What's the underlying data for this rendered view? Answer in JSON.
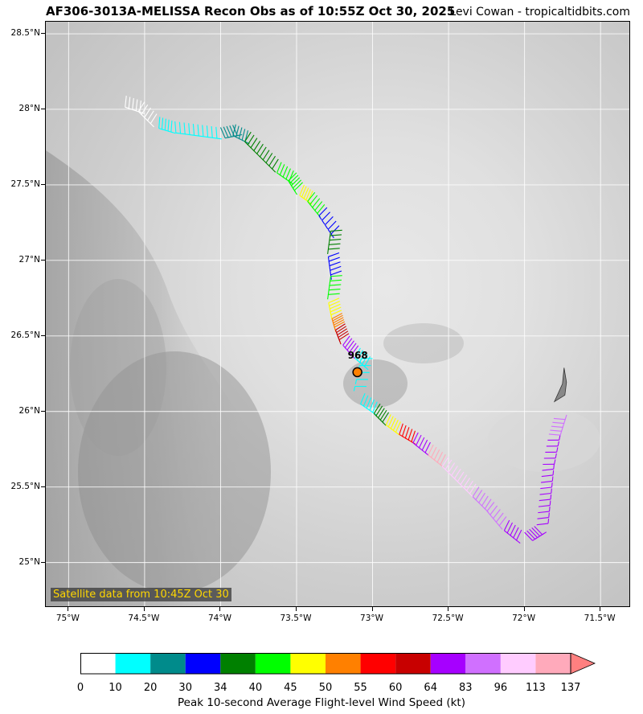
{
  "title": "AF306-3013A-MELISSA Recon Obs as of 10:55Z Oct 30, 2025",
  "credit": "Levi Cowan - tropicaltidbits.com",
  "satellite_label": "Satellite data from 10:45Z Oct 30",
  "center": {
    "pressure_label": "968",
    "lon": -73.1,
    "lat": 26.26
  },
  "axes": {
    "y_ticks": [
      "28.5°N",
      "28°N",
      "27.5°N",
      "27°N",
      "26.5°N",
      "26°N",
      "25.5°N",
      "25°N"
    ],
    "y_values": [
      28.5,
      28,
      27.5,
      27,
      26.5,
      26,
      25.5,
      25
    ],
    "x_ticks": [
      "75°W",
      "74.5°W",
      "74°W",
      "73.5°W",
      "73°W",
      "72.5°W",
      "72°W",
      "71.5°W"
    ],
    "x_values": [
      -75,
      -74.5,
      -74,
      -73.5,
      -73,
      -72.5,
      -72,
      -71.5
    ],
    "lon_range": [
      -75.15,
      -71.3
    ],
    "lat_range": [
      24.7,
      28.58
    ]
  },
  "colorbar": {
    "title": "Peak 10-second Average Flight-level Wind Speed (kt)",
    "labels": [
      "0",
      "10",
      "20",
      "30",
      "34",
      "40",
      "45",
      "50",
      "55",
      "60",
      "64",
      "83",
      "96",
      "113",
      "137"
    ],
    "colors": [
      "#ffffff",
      "#00ffff",
      "#008b8b",
      "#0000ff",
      "#008000",
      "#00ff00",
      "#ffff00",
      "#ff8000",
      "#ff0000",
      "#c80000",
      "#a600ff",
      "#d070ff",
      "#ffccff",
      "#ffaabb"
    ],
    "extend_color": "#ff8080"
  },
  "flight_track": [
    {
      "lon": -74.62,
      "lat": 28.09,
      "c": "#ffffff"
    },
    {
      "lon": -74.5,
      "lat": 28.05,
      "c": "#ffffff"
    },
    {
      "lon": -74.4,
      "lat": 27.95,
      "c": "#00ffff"
    },
    {
      "lon": -74.3,
      "lat": 27.92,
      "c": "#00ffff"
    },
    {
      "lon": -74.15,
      "lat": 27.9,
      "c": "#00ffff"
    },
    {
      "lon": -74.0,
      "lat": 27.88,
      "c": "#008b8b"
    },
    {
      "lon": -73.9,
      "lat": 27.9,
      "c": "#008b8b"
    },
    {
      "lon": -73.8,
      "lat": 27.85,
      "c": "#008000"
    },
    {
      "lon": -73.7,
      "lat": 27.75,
      "c": "#008000"
    },
    {
      "lon": -73.6,
      "lat": 27.65,
      "c": "#00ff00"
    },
    {
      "lon": -73.5,
      "lat": 27.58,
      "c": "#00ff00"
    },
    {
      "lon": -73.45,
      "lat": 27.5,
      "c": "#ffff00"
    },
    {
      "lon": -73.38,
      "lat": 27.45,
      "c": "#00ff00"
    },
    {
      "lon": -73.3,
      "lat": 27.35,
      "c": "#0000ff"
    },
    {
      "lon": -73.2,
      "lat": 27.2,
      "c": "#008000"
    },
    {
      "lon": -73.22,
      "lat": 27.05,
      "c": "#0000ff"
    },
    {
      "lon": -73.2,
      "lat": 26.9,
      "c": "#00ff00"
    },
    {
      "lon": -73.22,
      "lat": 26.75,
      "c": "#ffff00"
    },
    {
      "lon": -73.2,
      "lat": 26.65,
      "c": "#ff8000"
    },
    {
      "lon": -73.18,
      "lat": 26.58,
      "c": "#c80000"
    },
    {
      "lon": -73.15,
      "lat": 26.5,
      "c": "#a600ff"
    },
    {
      "lon": -73.08,
      "lat": 26.42,
      "c": "#00ffff"
    },
    {
      "lon": -73.0,
      "lat": 26.35,
      "c": "#00ffff"
    },
    {
      "lon": -73.05,
      "lat": 26.12,
      "c": "#00ffff"
    },
    {
      "lon": -72.95,
      "lat": 26.05,
      "c": "#008000"
    },
    {
      "lon": -72.88,
      "lat": 25.98,
      "c": "#ffff00"
    },
    {
      "lon": -72.8,
      "lat": 25.92,
      "c": "#ff0000"
    },
    {
      "lon": -72.7,
      "lat": 25.86,
      "c": "#a600ff"
    },
    {
      "lon": -72.6,
      "lat": 25.78,
      "c": "#ffaabb"
    },
    {
      "lon": -72.5,
      "lat": 25.7,
      "c": "#ffccff"
    },
    {
      "lon": -72.4,
      "lat": 25.6,
      "c": "#ffccff"
    },
    {
      "lon": -72.3,
      "lat": 25.5,
      "c": "#d070ff"
    },
    {
      "lon": -72.2,
      "lat": 25.4,
      "c": "#d070ff"
    },
    {
      "lon": -72.1,
      "lat": 25.28,
      "c": "#a600ff"
    },
    {
      "lon": -72.0,
      "lat": 25.2,
      "c": "#a600ff"
    },
    {
      "lon": -71.92,
      "lat": 25.25,
      "c": "#a600ff"
    },
    {
      "lon": -71.9,
      "lat": 25.45,
      "c": "#a600ff"
    },
    {
      "lon": -71.88,
      "lat": 25.65,
      "c": "#a600ff"
    },
    {
      "lon": -71.84,
      "lat": 25.85,
      "c": "#d070ff"
    },
    {
      "lon": -71.8,
      "lat": 25.98,
      "c": "#ffffff"
    }
  ],
  "aircraft": {
    "lon": -71.74,
    "lat": 26.14
  }
}
